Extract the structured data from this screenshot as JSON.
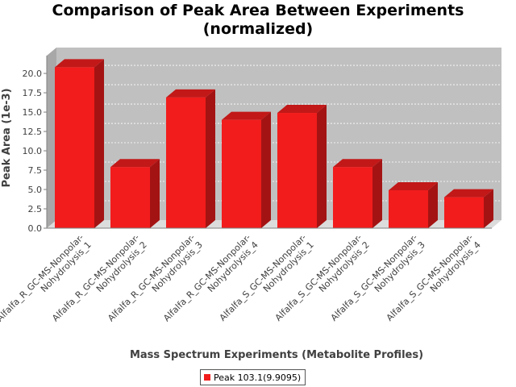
{
  "chart_data": {
    "type": "bar",
    "title": [
      "Comparison of Peak Area Between Experiments",
      "(normalized)"
    ],
    "xlabel": "Mass Spectrum Experiments (Metabolite Profiles)",
    "ylabel": "Peak Area (1e-3)",
    "categories": [
      [
        "Alfalfa_R_GC-MS-Nonpolar-",
        "Nohydrolysis_1"
      ],
      [
        "Alfalfa_R_GC-MS-Nonpolar-",
        "Nohydrolysis_2"
      ],
      [
        "Alfalfa_R_GC-MS-Nonpolar-",
        "Nohydrolysis_3"
      ],
      [
        "Alfalfa_R_GC-MS-Nonpolar-",
        "Nohydrolysis_4"
      ],
      [
        "Alfalfa_S_GC-MS-Nonpolar-",
        "Nohydrolysis_1"
      ],
      [
        "Alfalfa_S_GC-MS-Nonpolar-",
        "Nohydrolysis_2"
      ],
      [
        "Alfalfa_S_GC-MS-Nonpolar-",
        "Nohydrolysis_3"
      ],
      [
        "Alfalfa_S_GC-MS-Nonpolar-",
        "Nohydrolysis_4"
      ]
    ],
    "series": [
      {
        "name": "Peak 103.1(9.9095)",
        "values": [
          20.8,
          7.9,
          16.9,
          14.0,
          14.9,
          7.9,
          4.9,
          4.0
        ],
        "color": "#f21c1c"
      }
    ],
    "yticks": [
      "0.0",
      "2.5",
      "5.0",
      "7.5",
      "10.0",
      "12.5",
      "15.0",
      "17.5",
      "20.0"
    ],
    "ylim": [
      0,
      22.3
    ],
    "grid": true,
    "legend_position": "bottom",
    "style": "3d"
  }
}
